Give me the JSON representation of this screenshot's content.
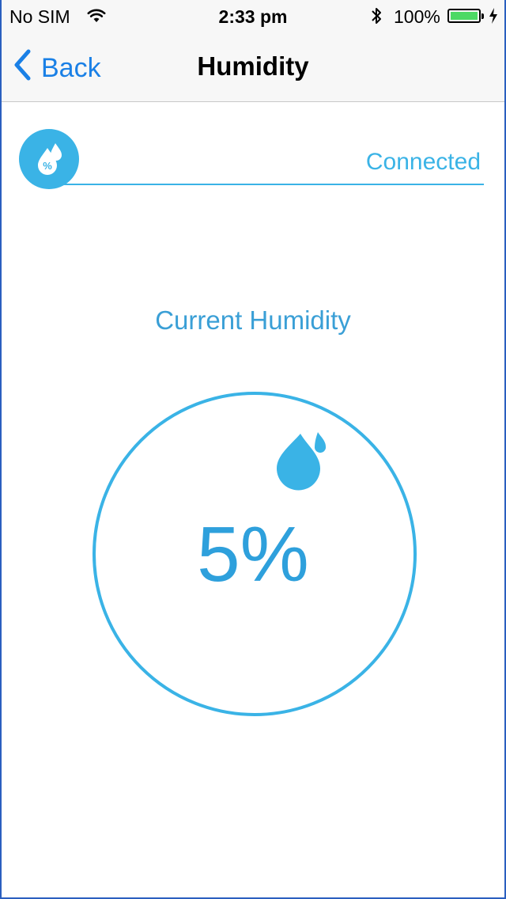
{
  "status_bar": {
    "carrier": "No SIM",
    "time": "2:33 pm",
    "battery_percent": "100%",
    "battery_level": 1.0,
    "icons": [
      "wifi-icon",
      "bluetooth-icon",
      "battery-icon",
      "charging-icon"
    ]
  },
  "nav": {
    "back_label": "Back",
    "title": "Humidity"
  },
  "device": {
    "icon": "humidity-percent-icon",
    "status": "Connected"
  },
  "reading": {
    "heading": "Current Humidity",
    "value": "5%",
    "icon": "water-drops-icon"
  },
  "colors": {
    "accent": "#3ab3e6",
    "nav_tint": "#1a80e6",
    "battery_green": "#4cd964"
  }
}
